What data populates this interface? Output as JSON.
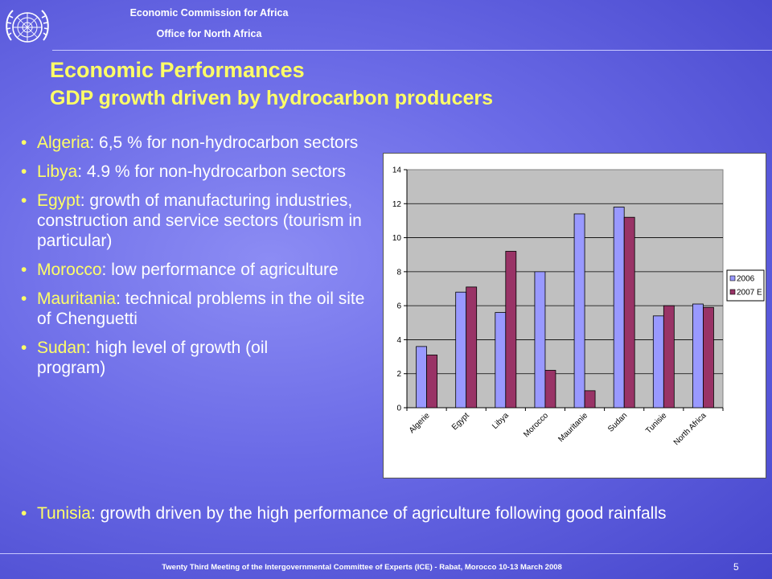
{
  "header": {
    "org_line1": "Economic Commission for Africa",
    "org_line2": "Office for North Africa",
    "logo_icon": "un-emblem-icon"
  },
  "slide": {
    "title": "Economic Performances",
    "subtitle": "GDP growth driven by hydrocarbon producers",
    "bullets": [
      {
        "country": "Algeria",
        "text": ": 6,5 % for non-hydrocarbon sectors"
      },
      {
        "country": "Libya",
        "text": ": 4.9 % for non-hydrocarbon sectors"
      },
      {
        "country": "Egypt",
        "text": ": growth of manufacturing industries, construction and service sectors (tourism in particular)"
      },
      {
        "country": "Morocco",
        "text": ": low performance of agriculture"
      },
      {
        "country": "Mauritania",
        "text": ": technical problems in the oil site of Chenguetti"
      },
      {
        "country": "Sudan",
        "text": ": high level of growth (oil program)"
      }
    ],
    "bullet_wide": {
      "country": "Tunisia",
      "text": ": growth driven by the high performance of agriculture following good rainfalls"
    }
  },
  "chart_data": {
    "type": "bar",
    "categories": [
      "Algerie",
      "Egypt",
      "Libya",
      "Morocco",
      "Mauritanie",
      "Sudan",
      "Tunisie",
      "North Africa"
    ],
    "series": [
      {
        "name": "2006",
        "values": [
          3.6,
          6.8,
          5.6,
          8.0,
          11.4,
          11.8,
          5.4,
          6.1
        ],
        "color": "#9999ff"
      },
      {
        "name": "2007 E",
        "values": [
          3.1,
          7.1,
          9.2,
          2.2,
          1.0,
          11.2,
          6.0,
          5.9
        ],
        "color": "#993366"
      }
    ],
    "ylim": [
      0,
      14
    ],
    "yticks": [
      0,
      2,
      4,
      6,
      8,
      10,
      12,
      14
    ],
    "plot_background": "#c0c0c0",
    "grid": true,
    "legend_position": "right"
  },
  "footer": {
    "text": "Twenty Third Meeting of the Intergovernmental Committee of Experts (ICE) - Rabat, Morocco 10-13 March 2008",
    "page": "5"
  }
}
